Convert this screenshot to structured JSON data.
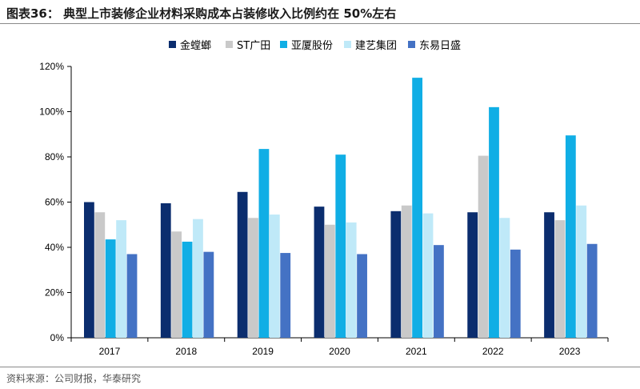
{
  "title": "图表36：  典型上市装修企业材料采购成本占装修收入比例约在 50%左右",
  "source": "资料来源：公司财报，华泰研究",
  "chart_data": {
    "type": "bar",
    "categories": [
      "2017",
      "2018",
      "2019",
      "2020",
      "2021",
      "2022",
      "2023"
    ],
    "ylim": [
      0,
      120
    ],
    "yticks": [
      0,
      20,
      40,
      60,
      80,
      100,
      120
    ],
    "ytick_labels": [
      "0%",
      "20%",
      "40%",
      "60%",
      "80%",
      "100%",
      "120%"
    ],
    "grid": false,
    "legend_position": "top",
    "series": [
      {
        "name": "金螳螂",
        "color": "#0b2d6e",
        "values": [
          60,
          59.5,
          64.5,
          58,
          56,
          55.5,
          55.5
        ]
      },
      {
        "name": "ST广田",
        "color": "#c9c9c9",
        "values": [
          55.5,
          47,
          53,
          50,
          58.5,
          80.5,
          52
        ]
      },
      {
        "name": "亚厦股份",
        "color": "#10aee5",
        "values": [
          43.5,
          42.5,
          83.5,
          81,
          115,
          102,
          89.5
        ]
      },
      {
        "name": "建艺集团",
        "color": "#bfe9f8",
        "values": [
          52,
          52.5,
          54.5,
          51,
          55,
          53,
          58.5
        ]
      },
      {
        "name": "东易日盛",
        "color": "#4472c4",
        "values": [
          37,
          38,
          37.5,
          37,
          41,
          39,
          41.5
        ]
      }
    ]
  }
}
